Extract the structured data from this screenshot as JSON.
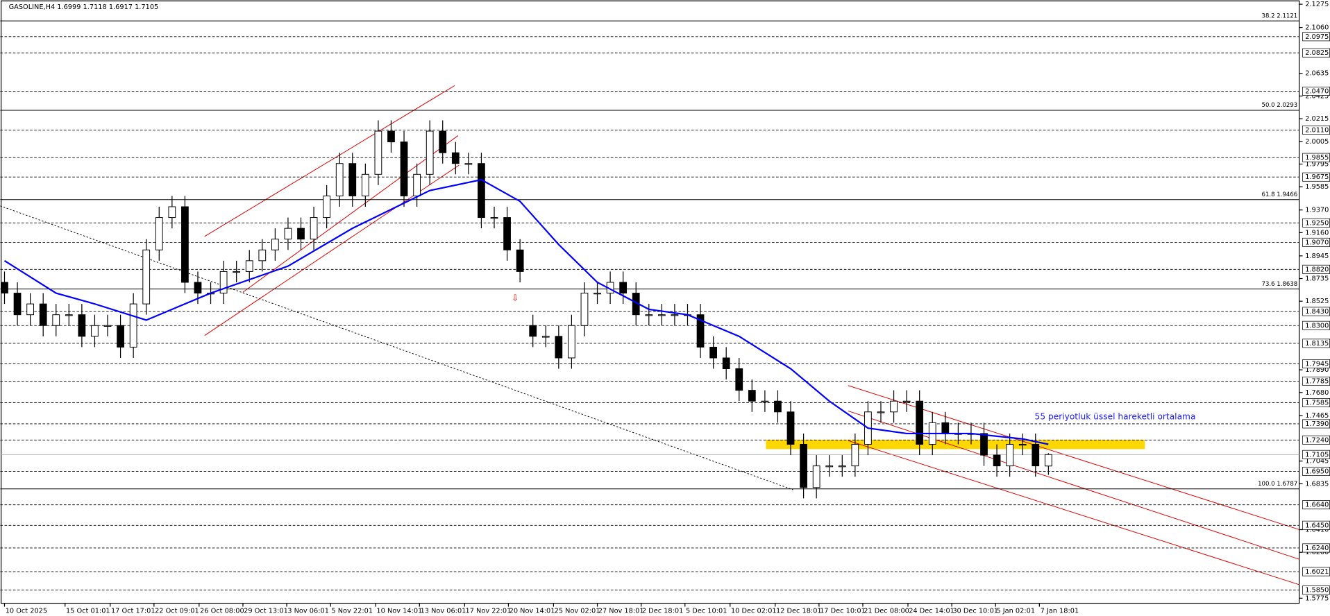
{
  "chart_data": {
    "type": "candlestick",
    "title": "GASOLINE,H4  1.6999 1.7118 1.6917 1.7105",
    "annotation": "55 periyotluk üssel hareketli ortalama",
    "ylim": [
      1.5775,
      2.1275
    ],
    "yticks": [
      {
        "value": 2.1275,
        "label": "2.1275"
      },
      {
        "value": 2.106,
        "label": "2.1060"
      },
      {
        "value": 2.0635,
        "label": "2.0635"
      },
      {
        "value": 2.0425,
        "label": "2.0425"
      },
      {
        "value": 2.0215,
        "label": "2.0215"
      },
      {
        "value": 2.0005,
        "label": "2.0005"
      },
      {
        "value": 1.9795,
        "label": "1.9795"
      },
      {
        "value": 1.9585,
        "label": "1.9585"
      },
      {
        "value": 1.937,
        "label": "1.9370"
      },
      {
        "value": 1.916,
        "label": "1.9160"
      },
      {
        "value": 1.8945,
        "label": "1.8945"
      },
      {
        "value": 1.8735,
        "label": "1.8735"
      },
      {
        "value": 1.8525,
        "label": "1.8525"
      },
      {
        "value": 1.789,
        "label": "1.7890"
      },
      {
        "value": 1.768,
        "label": "1.7680"
      },
      {
        "value": 1.7465,
        "label": "1.7465"
      },
      {
        "value": 1.7045,
        "label": "1.7045"
      },
      {
        "value": 1.6835,
        "label": "1.6835"
      },
      {
        "value": 1.641,
        "label": "1.6410"
      },
      {
        "value": 1.62,
        "label": "1.6200"
      },
      {
        "value": 1.5775,
        "label": "1.5775"
      }
    ],
    "levels": [
      {
        "value": 2.0975,
        "label": "2.0975"
      },
      {
        "value": 2.0825,
        "label": "2.0825"
      },
      {
        "value": 2.047,
        "label": "2.0470"
      },
      {
        "value": 2.011,
        "label": "2.0110"
      },
      {
        "value": 1.9855,
        "label": "1.9855"
      },
      {
        "value": 1.9675,
        "label": "1.9675"
      },
      {
        "value": 1.925,
        "label": "1.9250"
      },
      {
        "value": 1.907,
        "label": "1.9070"
      },
      {
        "value": 1.882,
        "label": "1.8820"
      },
      {
        "value": 1.843,
        "label": "1.8430"
      },
      {
        "value": 1.83,
        "label": "1.8300"
      },
      {
        "value": 1.8135,
        "label": "1.8135"
      },
      {
        "value": 1.7945,
        "label": "1.7945"
      },
      {
        "value": 1.7785,
        "label": "1.7785"
      },
      {
        "value": 1.7585,
        "label": "1.7585"
      },
      {
        "value": 1.739,
        "label": "1.7390"
      },
      {
        "value": 1.724,
        "label": "1.7240"
      },
      {
        "value": 1.695,
        "label": "1.6950"
      },
      {
        "value": 1.664,
        "label": "1.6640"
      },
      {
        "value": 1.645,
        "label": "1.6450"
      },
      {
        "value": 1.624,
        "label": "1.6240"
      },
      {
        "value": 1.6021,
        "label": "1.6021"
      },
      {
        "value": 1.585,
        "label": "1.5850"
      }
    ],
    "fib": [
      {
        "value": 2.1121,
        "label": "38.2 2.1121"
      },
      {
        "value": 2.0293,
        "label": "50.0 2.0293"
      },
      {
        "value": 1.9466,
        "label": "61.8 1.9466"
      },
      {
        "value": 1.8638,
        "label": "73.6 1.8638"
      },
      {
        "value": 1.6787,
        "label": "100.0 1.6787"
      }
    ],
    "current": {
      "value": 1.7105,
      "label": "1.7105"
    },
    "xticks": [
      {
        "value": 0,
        "label": "10 Oct 2025"
      },
      {
        "value": 4.7,
        "label": "15 Oct 01:01"
      },
      {
        "value": 8.2,
        "label": "17 Oct 17:01"
      },
      {
        "value": 11.6,
        "label": "22 Oct 09:01"
      },
      {
        "value": 15.1,
        "label": "26 Oct 08:00"
      },
      {
        "value": 18.5,
        "label": "29 Oct 13:01"
      },
      {
        "value": 21.9,
        "label": "3 Nov 06:01"
      },
      {
        "value": 25.3,
        "label": "5 Nov 22:01"
      },
      {
        "value": 28.8,
        "label": "10 Nov 14:01"
      },
      {
        "value": 32.2,
        "label": "13 Nov 06:01"
      },
      {
        "value": 35.7,
        "label": "17 Nov 22:01"
      },
      {
        "value": 39.1,
        "label": "20 Nov 14:01"
      },
      {
        "value": 42.6,
        "label": "25 Nov 02:01"
      },
      {
        "value": 46,
        "label": "27 Nov 18:01"
      },
      {
        "value": 49.4,
        "label": "2 Dec 18:01"
      },
      {
        "value": 52.8,
        "label": "5 Dec 10:01"
      },
      {
        "value": 56.3,
        "label": "10 Dec 02:01"
      },
      {
        "value": 59.8,
        "label": "12 Dec 18:01"
      },
      {
        "value": 63.2,
        "label": "17 Dec 10:01"
      },
      {
        "value": 66.6,
        "label": "21 Dec 08:00"
      },
      {
        "value": 70.1,
        "label": "24 Dec 14:01"
      },
      {
        "value": 73.5,
        "label": "30 Dec 10:01"
      },
      {
        "value": 76.9,
        "label": "5 Jan 02:01"
      },
      {
        "value": 80.3,
        "label": "7 Jan 18:01"
      }
    ],
    "open": [
      1.87,
      1.86,
      1.84,
      1.85,
      1.83,
      1.84,
      1.84,
      1.82,
      1.83,
      1.83,
      1.81,
      1.85,
      1.9,
      1.93,
      1.94,
      1.87,
      1.86,
      1.86,
      1.88,
      1.88,
      1.89,
      1.9,
      1.91,
      1.92,
      1.91,
      1.93,
      1.95,
      1.98,
      1.95,
      1.97,
      2.01,
      2.0,
      1.95,
      1.97,
      2.01,
      1.99,
      1.98,
      1.98,
      1.93,
      1.93,
      1.9,
      1.83,
      1.82,
      1.82,
      1.8,
      1.83,
      1.86,
      1.86,
      1.87,
      1.86,
      1.84,
      1.84,
      1.84,
      1.84,
      1.84,
      1.81,
      1.8,
      1.79,
      1.77,
      1.76,
      1.76,
      1.75,
      1.72,
      1.68,
      1.7,
      1.7,
      1.7,
      1.72,
      1.75,
      1.75,
      1.76,
      1.76,
      1.72,
      1.74,
      1.73,
      1.73,
      1.73,
      1.71,
      1.7,
      1.72,
      1.72,
      1.6999
    ],
    "high": [
      1.88,
      1.87,
      1.86,
      1.86,
      1.85,
      1.85,
      1.85,
      1.84,
      1.84,
      1.84,
      1.86,
      1.91,
      1.94,
      1.95,
      1.95,
      1.88,
      1.87,
      1.89,
      1.89,
      1.9,
      1.91,
      1.92,
      1.93,
      1.93,
      1.94,
      1.96,
      1.99,
      1.99,
      1.98,
      2.02,
      2.02,
      2.01,
      1.98,
      2.02,
      2.02,
      2.0,
      1.99,
      1.99,
      1.94,
      1.94,
      1.91,
      1.84,
      1.83,
      1.83,
      1.84,
      1.87,
      1.87,
      1.88,
      1.88,
      1.87,
      1.85,
      1.85,
      1.85,
      1.85,
      1.85,
      1.82,
      1.81,
      1.8,
      1.78,
      1.77,
      1.77,
      1.76,
      1.73,
      1.71,
      1.71,
      1.71,
      1.73,
      1.76,
      1.76,
      1.77,
      1.77,
      1.77,
      1.75,
      1.75,
      1.74,
      1.74,
      1.74,
      1.72,
      1.73,
      1.73,
      1.73,
      1.7118
    ],
    "low": [
      1.85,
      1.83,
      1.83,
      1.82,
      1.82,
      1.83,
      1.81,
      1.81,
      1.82,
      1.8,
      1.8,
      1.84,
      1.89,
      1.92,
      1.86,
      1.85,
      1.85,
      1.85,
      1.87,
      1.87,
      1.88,
      1.89,
      1.9,
      1.9,
      1.9,
      1.92,
      1.94,
      1.94,
      1.94,
      1.96,
      1.99,
      1.94,
      1.94,
      1.96,
      1.98,
      1.97,
      1.97,
      1.92,
      1.92,
      1.89,
      1.87,
      1.81,
      1.81,
      1.79,
      1.79,
      1.82,
      1.85,
      1.85,
      1.85,
      1.83,
      1.83,
      1.83,
      1.83,
      1.83,
      1.8,
      1.79,
      1.78,
      1.76,
      1.75,
      1.75,
      1.74,
      1.71,
      1.67,
      1.67,
      1.69,
      1.69,
      1.69,
      1.71,
      1.74,
      1.74,
      1.75,
      1.71,
      1.71,
      1.72,
      1.72,
      1.72,
      1.7,
      1.69,
      1.69,
      1.71,
      1.69,
      1.6917
    ],
    "close": [
      1.86,
      1.84,
      1.85,
      1.83,
      1.84,
      1.84,
      1.82,
      1.83,
      1.83,
      1.81,
      1.85,
      1.9,
      1.93,
      1.94,
      1.87,
      1.86,
      1.86,
      1.88,
      1.88,
      1.89,
      1.9,
      1.91,
      1.92,
      1.91,
      1.93,
      1.95,
      1.98,
      1.95,
      1.97,
      2.01,
      2.0,
      1.95,
      1.97,
      2.01,
      1.99,
      1.98,
      1.98,
      1.93,
      1.93,
      1.9,
      1.88,
      1.82,
      1.82,
      1.8,
      1.83,
      1.86,
      1.86,
      1.87,
      1.86,
      1.84,
      1.84,
      1.84,
      1.84,
      1.84,
      1.81,
      1.8,
      1.79,
      1.77,
      1.76,
      1.76,
      1.75,
      1.72,
      1.68,
      1.7,
      1.7,
      1.7,
      1.72,
      1.75,
      1.75,
      1.76,
      1.76,
      1.72,
      1.74,
      1.73,
      1.73,
      1.73,
      1.71,
      1.7,
      1.72,
      1.72,
      1.7,
      1.7105
    ],
    "ema": {
      "color": "#0000ff",
      "x": [
        0,
        4,
        7,
        11,
        16,
        22,
        27,
        33,
        37,
        40,
        43,
        46,
        50,
        53,
        57,
        61,
        64,
        67,
        70,
        75,
        79,
        81
      ],
      "values": [
        1.89,
        1.86,
        1.85,
        1.835,
        1.86,
        1.885,
        1.92,
        1.955,
        1.965,
        1.945,
        1.905,
        1.87,
        1.845,
        1.84,
        1.82,
        1.79,
        1.76,
        1.735,
        1.73,
        1.73,
        1.725,
        1.72
      ]
    }
  }
}
